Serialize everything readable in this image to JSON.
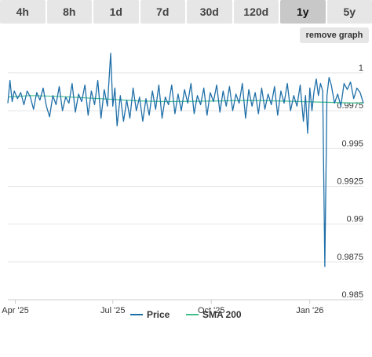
{
  "range_tabs": [
    {
      "label": "4h",
      "name": "tab-4h",
      "active": false
    },
    {
      "label": "8h",
      "name": "tab-8h",
      "active": false
    },
    {
      "label": "1d",
      "name": "tab-1d",
      "active": false
    },
    {
      "label": "7d",
      "name": "tab-7d",
      "active": false
    },
    {
      "label": "30d",
      "name": "tab-30d",
      "active": false
    },
    {
      "label": "120d",
      "name": "tab-120d",
      "active": false
    },
    {
      "label": "1y",
      "name": "tab-1y",
      "active": true
    },
    {
      "label": "5y",
      "name": "tab-5y",
      "active": false
    }
  ],
  "remove_graph_label": "remove graph",
  "chart_data": {
    "type": "line",
    "title": "",
    "xlabel": "",
    "ylabel": "",
    "x_range": [
      "2025-03-25",
      "2026-02-20"
    ],
    "ylim": [
      0.985,
      1.0015
    ],
    "y_ticks": [
      {
        "value": 1,
        "label": "1"
      },
      {
        "value": 0.9975,
        "label": "0.9975"
      },
      {
        "value": 0.995,
        "label": "0.995"
      },
      {
        "value": 0.9925,
        "label": "0.9925"
      },
      {
        "value": 0.99,
        "label": "0.99"
      },
      {
        "value": 0.9875,
        "label": "0.9875"
      },
      {
        "value": 0.985,
        "label": "0.985"
      }
    ],
    "x_ticks": [
      {
        "date": "2025-04-01",
        "label": "Apr '25"
      },
      {
        "date": "2025-07-01",
        "label": "Jul '25"
      },
      {
        "date": "2025-10-01",
        "label": "Oct '25"
      },
      {
        "date": "2026-01-01",
        "label": "Jan '26"
      }
    ],
    "grid": true,
    "legend_position": "bottom-center",
    "series": [
      {
        "name": "Price",
        "color": "#1f6fa8",
        "points": [
          [
            "2025-03-25",
            0.998
          ],
          [
            "2025-03-27",
            0.9995
          ],
          [
            "2025-03-29",
            0.9981
          ],
          [
            "2025-03-31",
            0.9988
          ],
          [
            "2025-04-03",
            0.9983
          ],
          [
            "2025-04-06",
            0.9987
          ],
          [
            "2025-04-09",
            0.9979
          ],
          [
            "2025-04-12",
            0.9988
          ],
          [
            "2025-04-15",
            0.9984
          ],
          [
            "2025-04-18",
            0.9976
          ],
          [
            "2025-04-21",
            0.9987
          ],
          [
            "2025-04-24",
            0.9982
          ],
          [
            "2025-04-27",
            0.999
          ],
          [
            "2025-04-30",
            0.9978
          ],
          [
            "2025-05-03",
            0.9971
          ],
          [
            "2025-05-06",
            0.9985
          ],
          [
            "2025-05-09",
            0.9979
          ],
          [
            "2025-05-12",
            0.9991
          ],
          [
            "2025-05-15",
            0.9975
          ],
          [
            "2025-05-18",
            0.9984
          ],
          [
            "2025-05-21",
            0.998
          ],
          [
            "2025-05-24",
            0.9993
          ],
          [
            "2025-05-27",
            0.9974
          ],
          [
            "2025-05-30",
            0.9986
          ],
          [
            "2025-06-02",
            0.9981
          ],
          [
            "2025-06-05",
            0.9992
          ],
          [
            "2025-06-08",
            0.9972
          ],
          [
            "2025-06-11",
            0.9988
          ],
          [
            "2025-06-14",
            0.9979
          ],
          [
            "2025-06-17",
            0.9995
          ],
          [
            "2025-06-20",
            0.997
          ],
          [
            "2025-06-23",
            0.9989
          ],
          [
            "2025-06-26",
            0.9978
          ],
          [
            "2025-06-29",
            1.0013
          ],
          [
            "2025-07-01",
            0.9978
          ],
          [
            "2025-07-03",
            0.999
          ],
          [
            "2025-07-05",
            0.9965
          ],
          [
            "2025-07-08",
            0.9985
          ],
          [
            "2025-07-11",
            0.9968
          ],
          [
            "2025-07-14",
            0.9982
          ],
          [
            "2025-07-17",
            0.997
          ],
          [
            "2025-07-20",
            0.999
          ],
          [
            "2025-07-23",
            0.9975
          ],
          [
            "2025-07-26",
            0.9984
          ],
          [
            "2025-07-29",
            0.9968
          ],
          [
            "2025-08-01",
            0.9983
          ],
          [
            "2025-08-04",
            0.9972
          ],
          [
            "2025-08-07",
            0.9988
          ],
          [
            "2025-08-10",
            0.9976
          ],
          [
            "2025-08-13",
            0.9992
          ],
          [
            "2025-08-16",
            0.997
          ],
          [
            "2025-08-19",
            0.9984
          ],
          [
            "2025-08-22",
            0.9979
          ],
          [
            "2025-08-25",
            0.9992
          ],
          [
            "2025-08-28",
            0.9973
          ],
          [
            "2025-08-31",
            0.9986
          ],
          [
            "2025-09-03",
            0.9975
          ],
          [
            "2025-09-06",
            0.9989
          ],
          [
            "2025-09-09",
            0.998
          ],
          [
            "2025-09-12",
            0.9993
          ],
          [
            "2025-09-15",
            0.9973
          ],
          [
            "2025-09-18",
            0.9985
          ],
          [
            "2025-09-21",
            0.9979
          ],
          [
            "2025-09-24",
            0.999
          ],
          [
            "2025-09-27",
            0.9972
          ],
          [
            "2025-09-30",
            0.9987
          ],
          [
            "2025-10-03",
            0.9981
          ],
          [
            "2025-10-06",
            0.9992
          ],
          [
            "2025-10-09",
            0.9974
          ],
          [
            "2025-10-12",
            0.9988
          ],
          [
            "2025-10-15",
            0.9978
          ],
          [
            "2025-10-18",
            0.9991
          ],
          [
            "2025-10-21",
            0.9975
          ],
          [
            "2025-10-24",
            0.9986
          ],
          [
            "2025-10-27",
            0.998
          ],
          [
            "2025-10-30",
            0.9993
          ],
          [
            "2025-11-02",
            0.997
          ],
          [
            "2025-11-05",
            0.9989
          ],
          [
            "2025-11-08",
            0.9978
          ],
          [
            "2025-11-11",
            0.9987
          ],
          [
            "2025-11-14",
            0.9973
          ],
          [
            "2025-11-17",
            0.999
          ],
          [
            "2025-11-20",
            0.9976
          ],
          [
            "2025-11-23",
            0.9986
          ],
          [
            "2025-11-26",
            0.9979
          ],
          [
            "2025-11-29",
            0.9991
          ],
          [
            "2025-12-02",
            0.9972
          ],
          [
            "2025-12-05",
            0.9988
          ],
          [
            "2025-12-08",
            0.998
          ],
          [
            "2025-12-11",
            0.9993
          ],
          [
            "2025-12-14",
            0.9975
          ],
          [
            "2025-12-17",
            0.9985
          ],
          [
            "2025-12-20",
            0.9978
          ],
          [
            "2025-12-23",
            0.9992
          ],
          [
            "2025-12-26",
            0.9968
          ],
          [
            "2025-12-28",
            0.9985
          ],
          [
            "2025-12-30",
            0.996
          ],
          [
            "2026-01-01",
            0.999
          ],
          [
            "2026-01-03",
            0.9975
          ],
          [
            "2026-01-05",
            0.9988
          ],
          [
            "2026-01-07",
            0.9996
          ],
          [
            "2026-01-09",
            0.9985
          ],
          [
            "2026-01-11",
            0.9993
          ],
          [
            "2026-01-13",
            0.9988
          ],
          [
            "2026-01-15",
            0.9872
          ],
          [
            "2026-01-17",
            0.9985
          ],
          [
            "2026-01-19",
            0.9997
          ],
          [
            "2026-01-21",
            0.9992
          ],
          [
            "2026-01-24",
            0.998
          ],
          [
            "2026-01-27",
            0.9986
          ],
          [
            "2026-01-30",
            0.9978
          ],
          [
            "2026-02-02",
            0.9993
          ],
          [
            "2026-02-05",
            0.9989
          ],
          [
            "2026-02-08",
            0.9994
          ],
          [
            "2026-02-11",
            0.9983
          ],
          [
            "2026-02-14",
            0.999
          ],
          [
            "2026-02-17",
            0.9987
          ],
          [
            "2026-02-20",
            0.998
          ]
        ]
      },
      {
        "name": "SMA 200",
        "color": "#3fbf8c",
        "points": [
          [
            "2025-03-25",
            0.9984
          ],
          [
            "2025-04-15",
            0.9985
          ],
          [
            "2025-05-10",
            0.99845
          ],
          [
            "2025-06-05",
            0.99835
          ],
          [
            "2025-07-01",
            0.99825
          ],
          [
            "2025-07-25",
            0.99815
          ],
          [
            "2025-08-20",
            0.9981
          ],
          [
            "2025-09-15",
            0.99812
          ],
          [
            "2025-10-10",
            0.99815
          ],
          [
            "2025-11-05",
            0.99818
          ],
          [
            "2025-12-01",
            0.99815
          ],
          [
            "2025-12-25",
            0.9981
          ],
          [
            "2026-01-20",
            0.99805
          ],
          [
            "2026-02-20",
            0.998
          ]
        ]
      }
    ]
  }
}
